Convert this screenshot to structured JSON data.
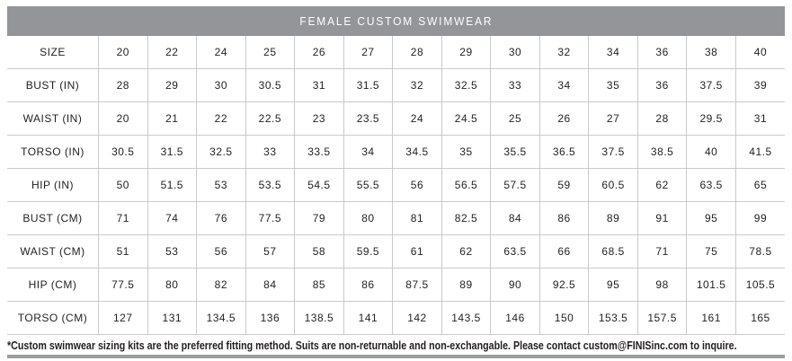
{
  "title": "FEMALE CUSTOM SWIMWEAR",
  "footnote": "*Custom swimwear sizing kits are the preferred fitting method. Suits are non-returnable and non-exchangable. Please contact custom@FINISinc.com to inquire.",
  "colors": {
    "header_bg": "#939598",
    "grid_line": "#c8cacc",
    "text": "#231f20",
    "bottom_bar": "#9a9c9e"
  },
  "chart_data": {
    "type": "table",
    "title": "FEMALE CUSTOM SWIMWEAR",
    "rows": [
      {
        "label": "SIZE",
        "values": [
          "20",
          "22",
          "24",
          "25",
          "26",
          "27",
          "28",
          "29",
          "30",
          "32",
          "34",
          "36",
          "38",
          "40"
        ]
      },
      {
        "label": "BUST (IN)",
        "values": [
          "28",
          "29",
          "30",
          "30.5",
          "31",
          "31.5",
          "32",
          "32.5",
          "33",
          "34",
          "35",
          "36",
          "37.5",
          "39"
        ]
      },
      {
        "label": "WAIST (IN)",
        "values": [
          "20",
          "21",
          "22",
          "22.5",
          "23",
          "23.5",
          "24",
          "24.5",
          "25",
          "26",
          "27",
          "28",
          "29.5",
          "31"
        ]
      },
      {
        "label": "TORSO (IN)",
        "values": [
          "30.5",
          "31.5",
          "32.5",
          "33",
          "33.5",
          "34",
          "34.5",
          "35",
          "35.5",
          "36.5",
          "37.5",
          "38.5",
          "40",
          "41.5"
        ]
      },
      {
        "label": "HIP (IN)",
        "values": [
          "50",
          "51.5",
          "53",
          "53.5",
          "54.5",
          "55.5",
          "56",
          "56.5",
          "57.5",
          "59",
          "60.5",
          "62",
          "63.5",
          "65"
        ]
      },
      {
        "label": "BUST (CM)",
        "values": [
          "71",
          "74",
          "76",
          "77.5",
          "79",
          "80",
          "81",
          "82.5",
          "84",
          "86",
          "89",
          "91",
          "95",
          "99"
        ]
      },
      {
        "label": "WAIST (CM)",
        "values": [
          "51",
          "53",
          "56",
          "57",
          "58",
          "59.5",
          "61",
          "62",
          "63.5",
          "66",
          "68.5",
          "71",
          "75",
          "78.5"
        ]
      },
      {
        "label": "HIP (CM)",
        "values": [
          "77.5",
          "80",
          "82",
          "84",
          "85",
          "86",
          "87.5",
          "89",
          "90",
          "92.5",
          "95",
          "98",
          "101.5",
          "105.5"
        ]
      },
      {
        "label": "TORSO (CM)",
        "values": [
          "127",
          "131",
          "134.5",
          "136",
          "138.5",
          "141",
          "142",
          "143.5",
          "146",
          "150",
          "153.5",
          "157.5",
          "161",
          "165"
        ]
      }
    ]
  }
}
